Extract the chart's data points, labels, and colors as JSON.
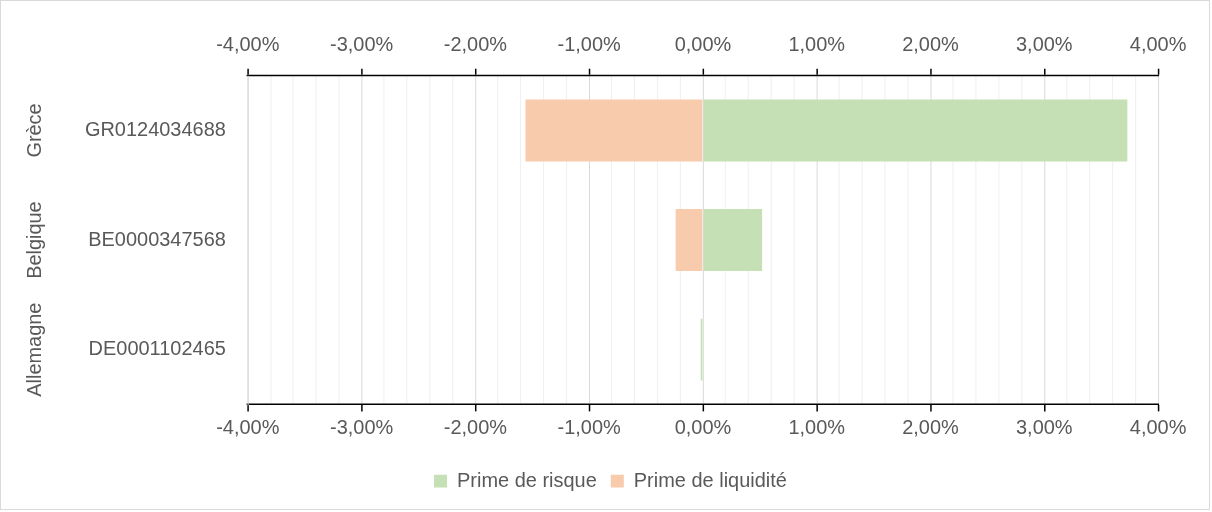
{
  "chart_data": {
    "type": "bar",
    "orientation": "horizontal",
    "stacked": true,
    "categories": [
      "GR0124034688",
      "BE0000347568",
      "DE0001102465"
    ],
    "series": [
      {
        "name": "Prime de risque",
        "color": "#c5e0b4",
        "values": [
          3.73,
          0.52,
          -0.02
        ]
      },
      {
        "name": "Prime de liquidité",
        "color": "#f8cbad",
        "values": [
          -1.56,
          -0.24,
          null
        ]
      }
    ],
    "xlim": [
      -4,
      4
    ],
    "xticks": [
      {
        "value": -4,
        "label": "-4,00%"
      },
      {
        "value": -3.8,
        "label": null
      },
      {
        "value": -3.6,
        "label": null
      },
      {
        "value": -3.4,
        "label": null
      },
      {
        "value": -3.2,
        "label": null
      },
      {
        "value": -3,
        "label": "-3,00%"
      },
      {
        "value": -2.8,
        "label": null
      },
      {
        "value": -2.6,
        "label": null
      },
      {
        "value": -2.4,
        "label": null
      },
      {
        "value": -2.2,
        "label": null
      },
      {
        "value": -2,
        "label": "-2,00%"
      },
      {
        "value": -1.8,
        "label": null
      },
      {
        "value": -1.6,
        "label": null
      },
      {
        "value": -1.4,
        "label": null
      },
      {
        "value": -1.2,
        "label": null
      },
      {
        "value": -1,
        "label": "-1,00%"
      },
      {
        "value": -0.8,
        "label": null
      },
      {
        "value": -0.6,
        "label": null
      },
      {
        "value": -0.4,
        "label": null
      },
      {
        "value": -0.2,
        "label": null
      },
      {
        "value": 0,
        "label": "0,00%"
      },
      {
        "value": 0.2,
        "label": null
      },
      {
        "value": 0.4,
        "label": null
      },
      {
        "value": 0.6,
        "label": null
      },
      {
        "value": 0.8,
        "label": null
      },
      {
        "value": 1,
        "label": "1,00%"
      },
      {
        "value": 1.2,
        "label": null
      },
      {
        "value": 1.4,
        "label": null
      },
      {
        "value": 1.6,
        "label": null
      },
      {
        "value": 1.8,
        "label": null
      },
      {
        "value": 2,
        "label": "2,00%"
      },
      {
        "value": 2.2,
        "label": null
      },
      {
        "value": 2.4,
        "label": null
      },
      {
        "value": 2.6,
        "label": null
      },
      {
        "value": 2.8,
        "label": null
      },
      {
        "value": 3,
        "label": "3,00%"
      },
      {
        "value": 3.2,
        "label": null
      },
      {
        "value": 3.4,
        "label": null
      },
      {
        "value": 3.6,
        "label": null
      },
      {
        "value": 3.8,
        "label": null
      },
      {
        "value": 4,
        "label": "4,00%"
      }
    ],
    "x2lim": [
      -4,
      4
    ],
    "x2ticks": [
      {
        "value": -4,
        "label": "-4,00%"
      },
      {
        "value": -3,
        "label": "-3,00%"
      },
      {
        "value": -2,
        "label": "-2,00%"
      },
      {
        "value": -1,
        "label": "-1,00%"
      },
      {
        "value": 0,
        "label": "0,00%"
      },
      {
        "value": 1,
        "label": "1,00%"
      },
      {
        "value": 2,
        "label": "2,00%"
      },
      {
        "value": 3,
        "label": "3,00%"
      },
      {
        "value": 4,
        "label": "4,00%"
      }
    ],
    "annotations": [
      "Grèce",
      "Belgique",
      "Allemagne"
    ],
    "grid": "x",
    "legend": "bottom"
  }
}
